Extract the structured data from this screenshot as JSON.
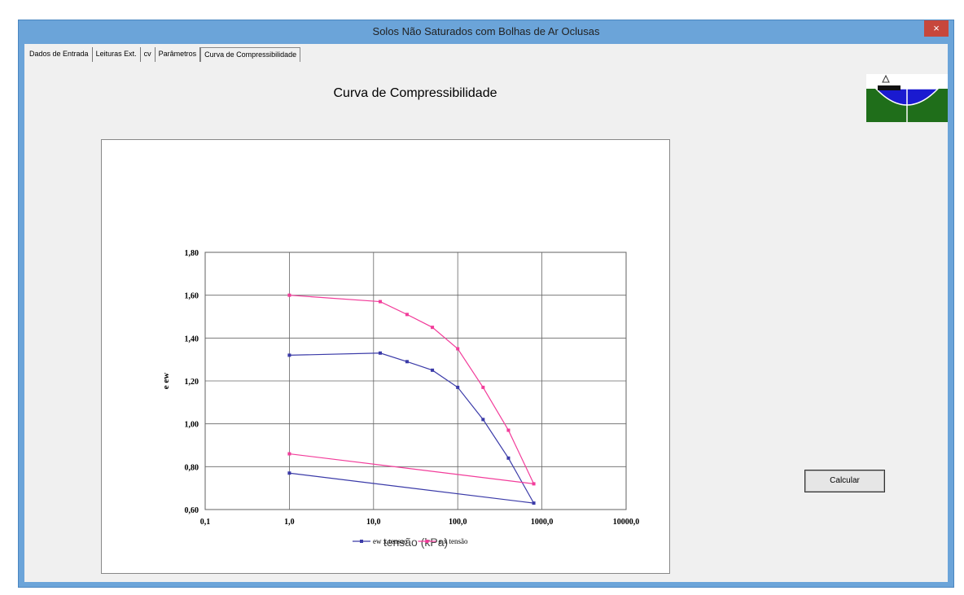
{
  "window": {
    "title": "Solos Não Saturados com Bolhas de Ar Oclusas",
    "close": "×"
  },
  "tabs": [
    "Dados de Entrada",
    "Leituras Ext.",
    "cv",
    "Parâmetros",
    "Curva de Compressibilidade"
  ],
  "heading": "Curva de Compressibilidade",
  "button": "Calcular",
  "chart_data": {
    "type": "line",
    "xlabel": "tensão  (kPa)",
    "ylabel": "e  ew",
    "x": [
      1,
      12,
      25,
      50,
      100,
      200,
      400,
      800,
      1
    ],
    "series": [
      {
        "name": "ew x tensao",
        "color": "#3a3aa8",
        "values": [
          1.32,
          1.33,
          1.29,
          1.25,
          1.17,
          1.02,
          0.84,
          0.63,
          0.77
        ]
      },
      {
        "name": "e x tensão",
        "color": "#f23c9a",
        "values": [
          1.6,
          1.57,
          1.51,
          1.45,
          1.35,
          1.17,
          0.97,
          0.72,
          0.86
        ]
      }
    ],
    "xscale": "log",
    "xlim": [
      0.1,
      10000
    ],
    "xticks": [
      {
        "value": 0.1,
        "label": "0,1"
      },
      {
        "value": 1,
        "label": "1,0"
      },
      {
        "value": 10,
        "label": "10,0"
      },
      {
        "value": 100,
        "label": "100,0"
      },
      {
        "value": 1000,
        "label": "1000,0"
      },
      {
        "value": 10000,
        "label": "10000,0"
      }
    ],
    "ylim": [
      0.6,
      1.8
    ],
    "yticks": [
      {
        "value": 0.6,
        "label": "0,60"
      },
      {
        "value": 0.8,
        "label": "0,80"
      },
      {
        "value": 1.0,
        "label": "1,00"
      },
      {
        "value": 1.2,
        "label": "1,20"
      },
      {
        "value": 1.4,
        "label": "1,40"
      },
      {
        "value": 1.6,
        "label": "1,60"
      },
      {
        "value": 1.8,
        "label": "1,80"
      }
    ],
    "grid": true,
    "legend": "bottom"
  }
}
